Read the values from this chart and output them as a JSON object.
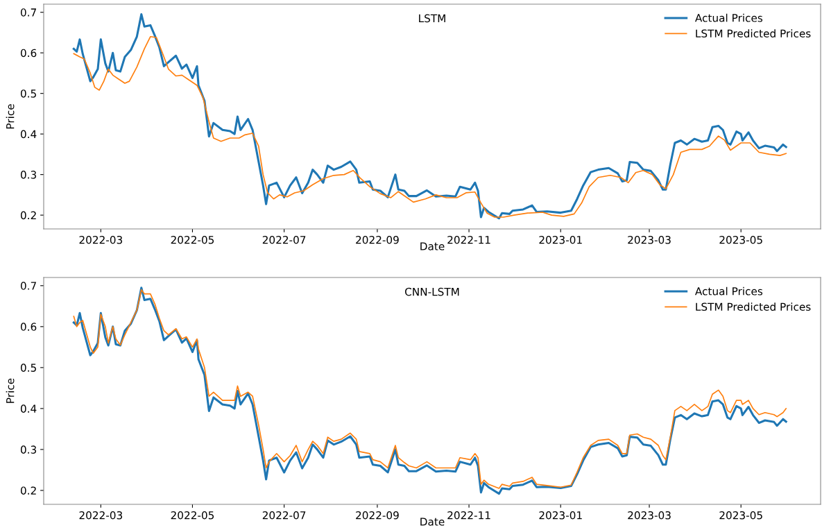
{
  "chart_data": [
    {
      "type": "line",
      "title": "LSTM",
      "xlabel": "Date",
      "ylabel": "Price",
      "legend": "top right",
      "grid": false,
      "xlim": [
        "2022-01-22",
        "2023-06-23"
      ],
      "xticks": [
        "2022-03",
        "2022-05",
        "2022-07",
        "2022-09",
        "2022-11",
        "2023-01",
        "2023-03",
        "2023-05"
      ],
      "ylim": [
        0.166,
        0.72
      ],
      "yticks": [
        0.2,
        0.3,
        0.4,
        0.5,
        0.6,
        0.7
      ],
      "series": [
        {
          "name": "Actual Prices",
          "color": "#1f77b4",
          "x": [
            "2022-02-11",
            "2022-02-13",
            "2022-02-15",
            "2022-02-17",
            "2022-02-22",
            "2022-02-24",
            "2022-02-27",
            "2022-03-01",
            "2022-03-04",
            "2022-03-06",
            "2022-03-09",
            "2022-03-11",
            "2022-03-14",
            "2022-03-17",
            "2022-03-21",
            "2022-03-25",
            "2022-03-28",
            "2022-03-30",
            "2022-04-03",
            "2022-04-06",
            "2022-04-09",
            "2022-04-12",
            "2022-04-15",
            "2022-04-20",
            "2022-04-24",
            "2022-04-27",
            "2022-05-01",
            "2022-05-04",
            "2022-05-05",
            "2022-05-09",
            "2022-05-12",
            "2022-05-15",
            "2022-05-21",
            "2022-05-26",
            "2022-05-29",
            "2022-05-31",
            "2022-06-02",
            "2022-06-07",
            "2022-06-10",
            "2022-06-14",
            "2022-06-17",
            "2022-06-19",
            "2022-06-21",
            "2022-06-26",
            "2022-07-01",
            "2022-07-05",
            "2022-07-09",
            "2022-07-13",
            "2022-07-17",
            "2022-07-20",
            "2022-07-23",
            "2022-07-27",
            "2022-07-30",
            "2022-08-03",
            "2022-08-08",
            "2022-08-14",
            "2022-08-18",
            "2022-08-20",
            "2022-08-27",
            "2022-08-29",
            "2022-09-03",
            "2022-09-08",
            "2022-09-13",
            "2022-09-15",
            "2022-09-19",
            "2022-09-22",
            "2022-09-27",
            "2022-10-04",
            "2022-10-10",
            "2022-10-17",
            "2022-10-23",
            "2022-10-26",
            "2022-11-02",
            "2022-11-05",
            "2022-11-07",
            "2022-11-09",
            "2022-11-11",
            "2022-11-14",
            "2022-11-21",
            "2022-11-23",
            "2022-11-28",
            "2022-11-30",
            "2022-12-07",
            "2022-12-13",
            "2022-12-16",
            "2022-12-23",
            "2023-01-01",
            "2023-01-08",
            "2023-01-12",
            "2023-01-16",
            "2023-01-21",
            "2023-01-26",
            "2023-02-02",
            "2023-02-08",
            "2023-02-11",
            "2023-02-14",
            "2023-02-16",
            "2023-02-21",
            "2023-02-25",
            "2023-03-02",
            "2023-03-07",
            "2023-03-10",
            "2023-03-12",
            "2023-03-15",
            "2023-03-18",
            "2023-03-22",
            "2023-03-26",
            "2023-03-31",
            "2023-04-05",
            "2023-04-09",
            "2023-04-12",
            "2023-04-16",
            "2023-04-19",
            "2023-04-22",
            "2023-04-24",
            "2023-04-28",
            "2023-05-01",
            "2023-05-02",
            "2023-05-06",
            "2023-05-09",
            "2023-05-13",
            "2023-05-17",
            "2023-05-23",
            "2023-05-25",
            "2023-05-29",
            "2023-05-31"
          ],
          "values": [
            0.61,
            0.603,
            0.633,
            0.597,
            0.53,
            0.54,
            0.56,
            0.633,
            0.574,
            0.554,
            0.6,
            0.557,
            0.554,
            0.59,
            0.607,
            0.64,
            0.695,
            0.665,
            0.668,
            0.642,
            0.613,
            0.567,
            0.577,
            0.593,
            0.561,
            0.571,
            0.538,
            0.567,
            0.52,
            0.482,
            0.394,
            0.427,
            0.41,
            0.407,
            0.4,
            0.443,
            0.41,
            0.437,
            0.41,
            0.332,
            0.273,
            0.227,
            0.273,
            0.28,
            0.244,
            0.273,
            0.293,
            0.254,
            0.28,
            0.312,
            0.3,
            0.28,
            0.322,
            0.312,
            0.319,
            0.332,
            0.312,
            0.28,
            0.283,
            0.263,
            0.26,
            0.244,
            0.3,
            0.263,
            0.26,
            0.247,
            0.247,
            0.261,
            0.246,
            0.248,
            0.246,
            0.27,
            0.263,
            0.28,
            0.26,
            0.195,
            0.218,
            0.208,
            0.192,
            0.205,
            0.203,
            0.211,
            0.214,
            0.224,
            0.208,
            0.209,
            0.206,
            0.211,
            0.24,
            0.273,
            0.306,
            0.312,
            0.316,
            0.303,
            0.283,
            0.286,
            0.331,
            0.329,
            0.312,
            0.309,
            0.286,
            0.263,
            0.263,
            0.325,
            0.378,
            0.384,
            0.374,
            0.388,
            0.381,
            0.384,
            0.417,
            0.42,
            0.41,
            0.378,
            0.374,
            0.406,
            0.4,
            0.384,
            0.404,
            0.384,
            0.365,
            0.371,
            0.367,
            0.358,
            0.374,
            0.368
          ]
        },
        {
          "name": "LSTM Predicted Prices",
          "color": "#ff7f0e",
          "x": [
            "2022-02-11",
            "2022-02-15",
            "2022-02-18",
            "2022-02-22",
            "2022-02-25",
            "2022-02-28",
            "2022-03-03",
            "2022-03-06",
            "2022-03-09",
            "2022-03-13",
            "2022-03-17",
            "2022-03-20",
            "2022-03-25",
            "2022-03-30",
            "2022-04-03",
            "2022-04-07",
            "2022-04-11",
            "2022-04-15",
            "2022-04-20",
            "2022-04-24",
            "2022-04-28",
            "2022-05-04",
            "2022-05-08",
            "2022-05-12",
            "2022-05-15",
            "2022-05-20",
            "2022-05-26",
            "2022-06-01",
            "2022-06-05",
            "2022-06-10",
            "2022-06-14",
            "2022-06-17",
            "2022-06-20",
            "2022-06-24",
            "2022-06-28",
            "2022-07-03",
            "2022-07-08",
            "2022-07-14",
            "2022-07-20",
            "2022-07-27",
            "2022-08-03",
            "2022-08-10",
            "2022-08-16",
            "2022-08-21",
            "2022-08-27",
            "2022-09-03",
            "2022-09-10",
            "2022-09-15",
            "2022-09-20",
            "2022-09-25",
            "2022-10-03",
            "2022-10-10",
            "2022-10-17",
            "2022-10-24",
            "2022-10-30",
            "2022-11-05",
            "2022-11-09",
            "2022-11-13",
            "2022-11-18",
            "2022-11-24",
            "2022-12-01",
            "2022-12-10",
            "2022-12-20",
            "2022-12-26",
            "2023-01-03",
            "2023-01-10",
            "2023-01-15",
            "2023-01-20",
            "2023-01-26",
            "2023-02-03",
            "2023-02-10",
            "2023-02-15",
            "2023-02-20",
            "2023-02-25",
            "2023-03-03",
            "2023-03-08",
            "2023-03-12",
            "2023-03-17",
            "2023-03-22",
            "2023-03-28",
            "2023-04-05",
            "2023-04-10",
            "2023-04-16",
            "2023-04-20",
            "2023-04-24",
            "2023-05-01",
            "2023-05-07",
            "2023-05-13",
            "2023-05-20",
            "2023-05-27",
            "2023-05-31"
          ],
          "values": [
            0.598,
            0.59,
            0.585,
            0.55,
            0.515,
            0.508,
            0.53,
            0.56,
            0.545,
            0.535,
            0.525,
            0.53,
            0.565,
            0.61,
            0.64,
            0.638,
            0.6,
            0.56,
            0.543,
            0.545,
            0.535,
            0.52,
            0.49,
            0.43,
            0.39,
            0.382,
            0.39,
            0.39,
            0.398,
            0.402,
            0.37,
            0.3,
            0.255,
            0.24,
            0.25,
            0.245,
            0.255,
            0.26,
            0.275,
            0.29,
            0.298,
            0.3,
            0.31,
            0.29,
            0.27,
            0.253,
            0.243,
            0.258,
            0.245,
            0.232,
            0.24,
            0.25,
            0.243,
            0.243,
            0.255,
            0.257,
            0.23,
            0.205,
            0.195,
            0.195,
            0.2,
            0.205,
            0.207,
            0.2,
            0.197,
            0.203,
            0.23,
            0.27,
            0.293,
            0.298,
            0.293,
            0.28,
            0.305,
            0.31,
            0.3,
            0.275,
            0.265,
            0.3,
            0.355,
            0.362,
            0.362,
            0.37,
            0.395,
            0.385,
            0.36,
            0.378,
            0.378,
            0.355,
            0.35,
            0.347,
            0.352
          ]
        }
      ]
    },
    {
      "type": "line",
      "title": "CNN-LSTM",
      "xlabel": "Date",
      "ylabel": "Price",
      "legend": "top right",
      "grid": false,
      "xlim": [
        "2022-01-22",
        "2023-06-23"
      ],
      "xticks": [
        "2022-03",
        "2022-05",
        "2022-07",
        "2022-09",
        "2022-11",
        "2023-01",
        "2023-03",
        "2023-05"
      ],
      "ylim": [
        0.166,
        0.72
      ],
      "yticks": [
        0.2,
        0.3,
        0.4,
        0.5,
        0.6,
        0.7
      ],
      "series": [
        {
          "name": "Actual Prices",
          "color": "#1f77b4",
          "x": [
            "2022-02-11",
            "2022-02-13",
            "2022-02-15",
            "2022-02-17",
            "2022-02-22",
            "2022-02-24",
            "2022-02-27",
            "2022-03-01",
            "2022-03-04",
            "2022-03-06",
            "2022-03-09",
            "2022-03-11",
            "2022-03-14",
            "2022-03-17",
            "2022-03-21",
            "2022-03-25",
            "2022-03-28",
            "2022-03-30",
            "2022-04-03",
            "2022-04-06",
            "2022-04-09",
            "2022-04-12",
            "2022-04-15",
            "2022-04-20",
            "2022-04-24",
            "2022-04-27",
            "2022-05-01",
            "2022-05-04",
            "2022-05-05",
            "2022-05-09",
            "2022-05-12",
            "2022-05-15",
            "2022-05-21",
            "2022-05-26",
            "2022-05-29",
            "2022-05-31",
            "2022-06-02",
            "2022-06-07",
            "2022-06-10",
            "2022-06-14",
            "2022-06-17",
            "2022-06-19",
            "2022-06-21",
            "2022-06-26",
            "2022-07-01",
            "2022-07-05",
            "2022-07-09",
            "2022-07-13",
            "2022-07-17",
            "2022-07-20",
            "2022-07-23",
            "2022-07-27",
            "2022-07-30",
            "2022-08-03",
            "2022-08-08",
            "2022-08-14",
            "2022-08-18",
            "2022-08-20",
            "2022-08-27",
            "2022-08-29",
            "2022-09-03",
            "2022-09-08",
            "2022-09-13",
            "2022-09-15",
            "2022-09-19",
            "2022-09-22",
            "2022-09-27",
            "2022-10-04",
            "2022-10-10",
            "2022-10-17",
            "2022-10-23",
            "2022-10-26",
            "2022-11-02",
            "2022-11-05",
            "2022-11-07",
            "2022-11-09",
            "2022-11-11",
            "2022-11-14",
            "2022-11-21",
            "2022-11-23",
            "2022-11-28",
            "2022-11-30",
            "2022-12-07",
            "2022-12-13",
            "2022-12-16",
            "2022-12-23",
            "2023-01-01",
            "2023-01-08",
            "2023-01-12",
            "2023-01-16",
            "2023-01-21",
            "2023-01-26",
            "2023-02-02",
            "2023-02-08",
            "2023-02-11",
            "2023-02-14",
            "2023-02-16",
            "2023-02-21",
            "2023-02-25",
            "2023-03-02",
            "2023-03-07",
            "2023-03-10",
            "2023-03-12",
            "2023-03-15",
            "2023-03-18",
            "2023-03-22",
            "2023-03-26",
            "2023-03-31",
            "2023-04-05",
            "2023-04-09",
            "2023-04-12",
            "2023-04-16",
            "2023-04-19",
            "2023-04-22",
            "2023-04-24",
            "2023-04-28",
            "2023-05-01",
            "2023-05-02",
            "2023-05-06",
            "2023-05-09",
            "2023-05-13",
            "2023-05-17",
            "2023-05-23",
            "2023-05-25",
            "2023-05-29",
            "2023-05-31"
          ],
          "values": [
            0.61,
            0.603,
            0.633,
            0.597,
            0.53,
            0.54,
            0.56,
            0.633,
            0.574,
            0.554,
            0.6,
            0.557,
            0.554,
            0.59,
            0.607,
            0.64,
            0.695,
            0.665,
            0.668,
            0.642,
            0.613,
            0.567,
            0.577,
            0.593,
            0.561,
            0.571,
            0.538,
            0.567,
            0.52,
            0.482,
            0.394,
            0.427,
            0.41,
            0.407,
            0.4,
            0.443,
            0.41,
            0.437,
            0.41,
            0.332,
            0.273,
            0.227,
            0.273,
            0.28,
            0.244,
            0.273,
            0.293,
            0.254,
            0.28,
            0.312,
            0.3,
            0.28,
            0.322,
            0.312,
            0.319,
            0.332,
            0.312,
            0.28,
            0.283,
            0.263,
            0.26,
            0.244,
            0.3,
            0.263,
            0.26,
            0.247,
            0.247,
            0.261,
            0.246,
            0.248,
            0.246,
            0.27,
            0.263,
            0.28,
            0.26,
            0.195,
            0.218,
            0.208,
            0.192,
            0.205,
            0.203,
            0.211,
            0.214,
            0.224,
            0.208,
            0.209,
            0.206,
            0.211,
            0.24,
            0.273,
            0.306,
            0.312,
            0.316,
            0.303,
            0.283,
            0.286,
            0.331,
            0.329,
            0.312,
            0.309,
            0.286,
            0.263,
            0.263,
            0.325,
            0.378,
            0.384,
            0.374,
            0.388,
            0.381,
            0.384,
            0.417,
            0.42,
            0.41,
            0.378,
            0.374,
            0.406,
            0.4,
            0.384,
            0.404,
            0.384,
            0.365,
            0.371,
            0.367,
            0.358,
            0.374,
            0.368
          ]
        },
        {
          "name": "LSTM Predicted Prices",
          "color": "#ff7f0e",
          "x": [
            "2022-02-11",
            "2022-02-13",
            "2022-02-15",
            "2022-02-17",
            "2022-02-22",
            "2022-02-24",
            "2022-02-27",
            "2022-03-01",
            "2022-03-04",
            "2022-03-06",
            "2022-03-09",
            "2022-03-11",
            "2022-03-14",
            "2022-03-17",
            "2022-03-21",
            "2022-03-25",
            "2022-03-28",
            "2022-03-30",
            "2022-04-03",
            "2022-04-06",
            "2022-04-09",
            "2022-04-12",
            "2022-04-15",
            "2022-04-20",
            "2022-04-24",
            "2022-04-27",
            "2022-05-01",
            "2022-05-04",
            "2022-05-05",
            "2022-05-09",
            "2022-05-12",
            "2022-05-15",
            "2022-05-21",
            "2022-05-26",
            "2022-05-29",
            "2022-05-31",
            "2022-06-02",
            "2022-06-07",
            "2022-06-10",
            "2022-06-14",
            "2022-06-17",
            "2022-06-19",
            "2022-06-21",
            "2022-06-26",
            "2022-07-01",
            "2022-07-05",
            "2022-07-09",
            "2022-07-13",
            "2022-07-17",
            "2022-07-20",
            "2022-07-23",
            "2022-07-27",
            "2022-07-30",
            "2022-08-03",
            "2022-08-08",
            "2022-08-14",
            "2022-08-18",
            "2022-08-20",
            "2022-08-27",
            "2022-08-29",
            "2022-09-03",
            "2022-09-08",
            "2022-09-13",
            "2022-09-15",
            "2022-09-19",
            "2022-09-22",
            "2022-09-27",
            "2022-10-04",
            "2022-10-10",
            "2022-10-17",
            "2022-10-23",
            "2022-10-26",
            "2022-11-02",
            "2022-11-05",
            "2022-11-07",
            "2022-11-09",
            "2022-11-11",
            "2022-11-14",
            "2022-11-21",
            "2022-11-23",
            "2022-11-28",
            "2022-11-30",
            "2022-12-07",
            "2022-12-13",
            "2022-12-16",
            "2022-12-23",
            "2023-01-01",
            "2023-01-08",
            "2023-01-12",
            "2023-01-16",
            "2023-01-21",
            "2023-01-26",
            "2023-02-02",
            "2023-02-08",
            "2023-02-11",
            "2023-02-14",
            "2023-02-16",
            "2023-02-21",
            "2023-02-25",
            "2023-03-02",
            "2023-03-07",
            "2023-03-10",
            "2023-03-12",
            "2023-03-15",
            "2023-03-18",
            "2023-03-22",
            "2023-03-26",
            "2023-03-31",
            "2023-04-05",
            "2023-04-09",
            "2023-04-12",
            "2023-04-16",
            "2023-04-19",
            "2023-04-22",
            "2023-04-24",
            "2023-04-28",
            "2023-05-01",
            "2023-05-02",
            "2023-05-06",
            "2023-05-09",
            "2023-05-13",
            "2023-05-17",
            "2023-05-23",
            "2023-05-25",
            "2023-05-29",
            "2023-05-31"
          ],
          "values": [
            0.625,
            0.6,
            0.61,
            0.615,
            0.55,
            0.535,
            0.55,
            0.63,
            0.6,
            0.56,
            0.6,
            0.57,
            0.555,
            0.58,
            0.61,
            0.64,
            0.69,
            0.68,
            0.68,
            0.655,
            0.62,
            0.59,
            0.58,
            0.595,
            0.57,
            0.575,
            0.55,
            0.57,
            0.545,
            0.5,
            0.43,
            0.44,
            0.42,
            0.42,
            0.42,
            0.455,
            0.43,
            0.44,
            0.43,
            0.36,
            0.3,
            0.255,
            0.27,
            0.29,
            0.27,
            0.285,
            0.31,
            0.27,
            0.3,
            0.32,
            0.31,
            0.29,
            0.33,
            0.32,
            0.325,
            0.34,
            0.325,
            0.295,
            0.29,
            0.275,
            0.27,
            0.255,
            0.31,
            0.28,
            0.268,
            0.26,
            0.255,
            0.27,
            0.255,
            0.255,
            0.255,
            0.28,
            0.275,
            0.29,
            0.28,
            0.215,
            0.225,
            0.215,
            0.205,
            0.215,
            0.21,
            0.218,
            0.222,
            0.232,
            0.215,
            0.212,
            0.208,
            0.213,
            0.245,
            0.28,
            0.31,
            0.322,
            0.325,
            0.31,
            0.29,
            0.29,
            0.335,
            0.338,
            0.33,
            0.325,
            0.31,
            0.285,
            0.275,
            0.33,
            0.395,
            0.405,
            0.395,
            0.41,
            0.395,
            0.405,
            0.435,
            0.445,
            0.43,
            0.395,
            0.39,
            0.42,
            0.42,
            0.41,
            0.42,
            0.4,
            0.385,
            0.39,
            0.385,
            0.38,
            0.39,
            0.4
          ]
        }
      ]
    }
  ]
}
